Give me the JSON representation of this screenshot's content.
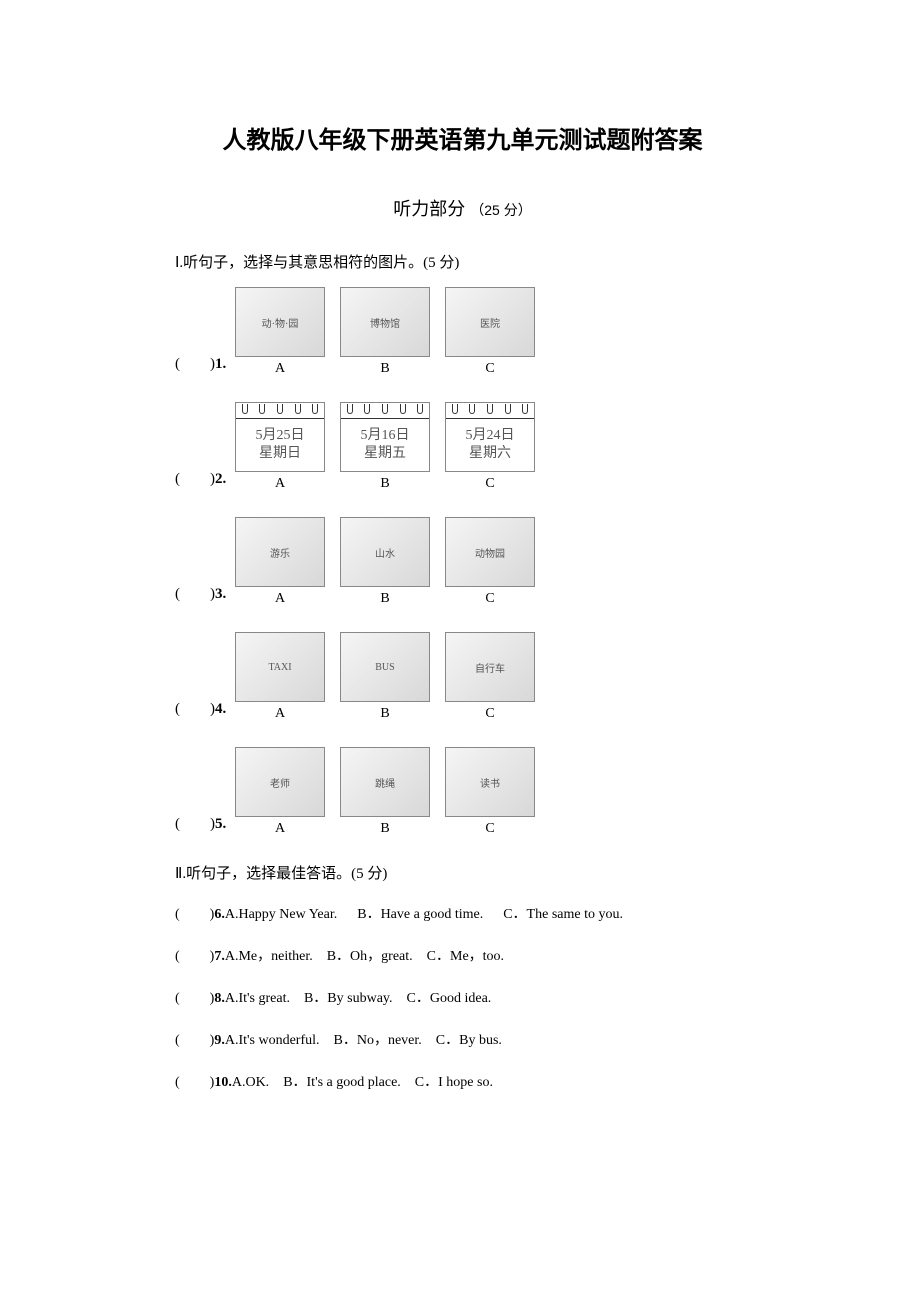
{
  "title": "人教版八年级下册英语第九单元测试题附答案",
  "section_header": "听力部分",
  "section_points": "（25 分）",
  "part1": {
    "instruction": "Ⅰ.听句子，选择与其意思相符的图片。(5 分)",
    "questions": [
      {
        "num": "1.",
        "options": [
          {
            "label": "A",
            "img": "动·物·园"
          },
          {
            "label": "B",
            "img": "博物馆"
          },
          {
            "label": "C",
            "img": "医院"
          }
        ]
      },
      {
        "num": "2.",
        "options": [
          {
            "label": "A",
            "date": "5月25日",
            "day": "星期日"
          },
          {
            "label": "B",
            "date": "5月16日",
            "day": "星期五"
          },
          {
            "label": "C",
            "date": "5月24日",
            "day": "星期六"
          }
        ]
      },
      {
        "num": "3.",
        "options": [
          {
            "label": "A",
            "img": "游乐"
          },
          {
            "label": "B",
            "img": "山水"
          },
          {
            "label": "C",
            "img": "动物园"
          }
        ]
      },
      {
        "num": "4.",
        "options": [
          {
            "label": "A",
            "img": "TAXI"
          },
          {
            "label": "B",
            "img": "BUS"
          },
          {
            "label": "C",
            "img": "自行车"
          }
        ]
      },
      {
        "num": "5.",
        "options": [
          {
            "label": "A",
            "img": "老师"
          },
          {
            "label": "B",
            "img": "跳绳"
          },
          {
            "label": "C",
            "img": "读书"
          }
        ]
      }
    ]
  },
  "part2": {
    "instruction": "Ⅱ.听句子，选择最佳答语。(5 分)",
    "questions": [
      {
        "num": "6.",
        "a": "A.Happy New Year.",
        "b": "B．Have a good time.",
        "c": "C．The same to you."
      },
      {
        "num": "7.",
        "a": "A.Me，neither.",
        "b": "B．Oh，great.",
        "c": "C．Me，too."
      },
      {
        "num": "8.",
        "a": "A.It's great.",
        "b": "B．By subway.",
        "c": "C．Good idea."
      },
      {
        "num": "9.",
        "a": "A.It's wonderful.",
        "b": "B．No，never.",
        "c": "C．By bus."
      },
      {
        "num": "10.",
        "a": "A.OK.",
        "b": "B．It's a good place.",
        "c": "C．I hope so."
      }
    ]
  }
}
